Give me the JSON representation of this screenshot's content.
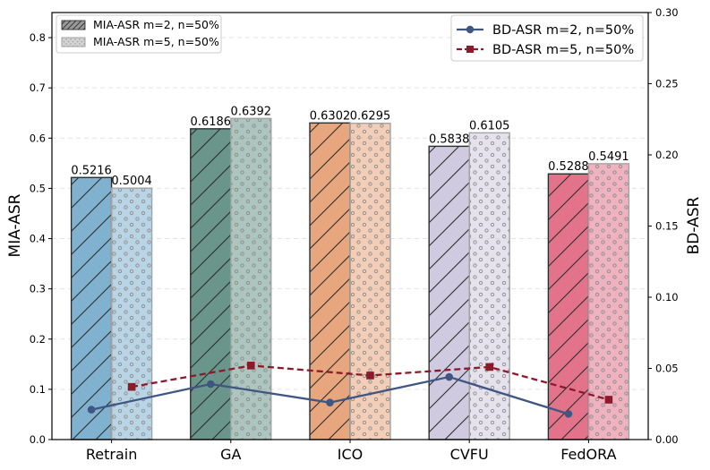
{
  "chart_data": {
    "type": "bar",
    "categories": [
      "Retrain",
      "GA",
      "ICO",
      "CVFU",
      "FedORA"
    ],
    "category_colors": [
      "#80b2cf",
      "#6a958a",
      "#e7a67d",
      "#cfcae0",
      "#e2738a"
    ],
    "y_left": {
      "label": "MIA-ASR",
      "ylim": [
        0,
        0.85
      ],
      "ticks": [
        "0.0",
        "0.1",
        "0.2",
        "0.3",
        "0.4",
        "0.5",
        "0.6",
        "0.7",
        "0.8"
      ]
    },
    "y_right": {
      "label": "BD-ASR",
      "ylim": [
        0,
        0.3
      ],
      "ticks": [
        "0.00",
        "0.05",
        "0.10",
        "0.15",
        "0.20",
        "0.25",
        "0.30"
      ]
    },
    "bar_series": [
      {
        "name": "MIA-ASR m=2, n=50%",
        "hatch": "diagonal",
        "values": [
          0.5216,
          0.6186,
          0.6302,
          0.5838,
          0.5288
        ],
        "labels": [
          "0.5216",
          "0.6186",
          "0.6302",
          "0.5838",
          "0.5288"
        ]
      },
      {
        "name": "MIA-ASR m=5, n=50%",
        "hatch": "dots",
        "values": [
          0.5004,
          0.6392,
          0.6295,
          0.6105,
          0.5491
        ],
        "labels": [
          "0.5004",
          "0.6392",
          "0.6295",
          "0.6105",
          "0.5491"
        ]
      }
    ],
    "line_series": [
      {
        "name": "BD-ASR m=2, n=50%",
        "axis": "right",
        "style": "solid",
        "marker": "circle",
        "color": "#3f5683",
        "values": [
          0.021,
          0.039,
          0.026,
          0.044,
          0.018
        ]
      },
      {
        "name": "BD-ASR m=5, n=50%",
        "axis": "right",
        "style": "dashed",
        "marker": "square",
        "color": "#8b1a2b",
        "values": [
          0.037,
          0.052,
          0.045,
          0.051,
          0.028
        ]
      }
    ],
    "legend_bars_position": "top-left",
    "legend_lines_position": "top-right",
    "grid": "horizontal dashed"
  }
}
